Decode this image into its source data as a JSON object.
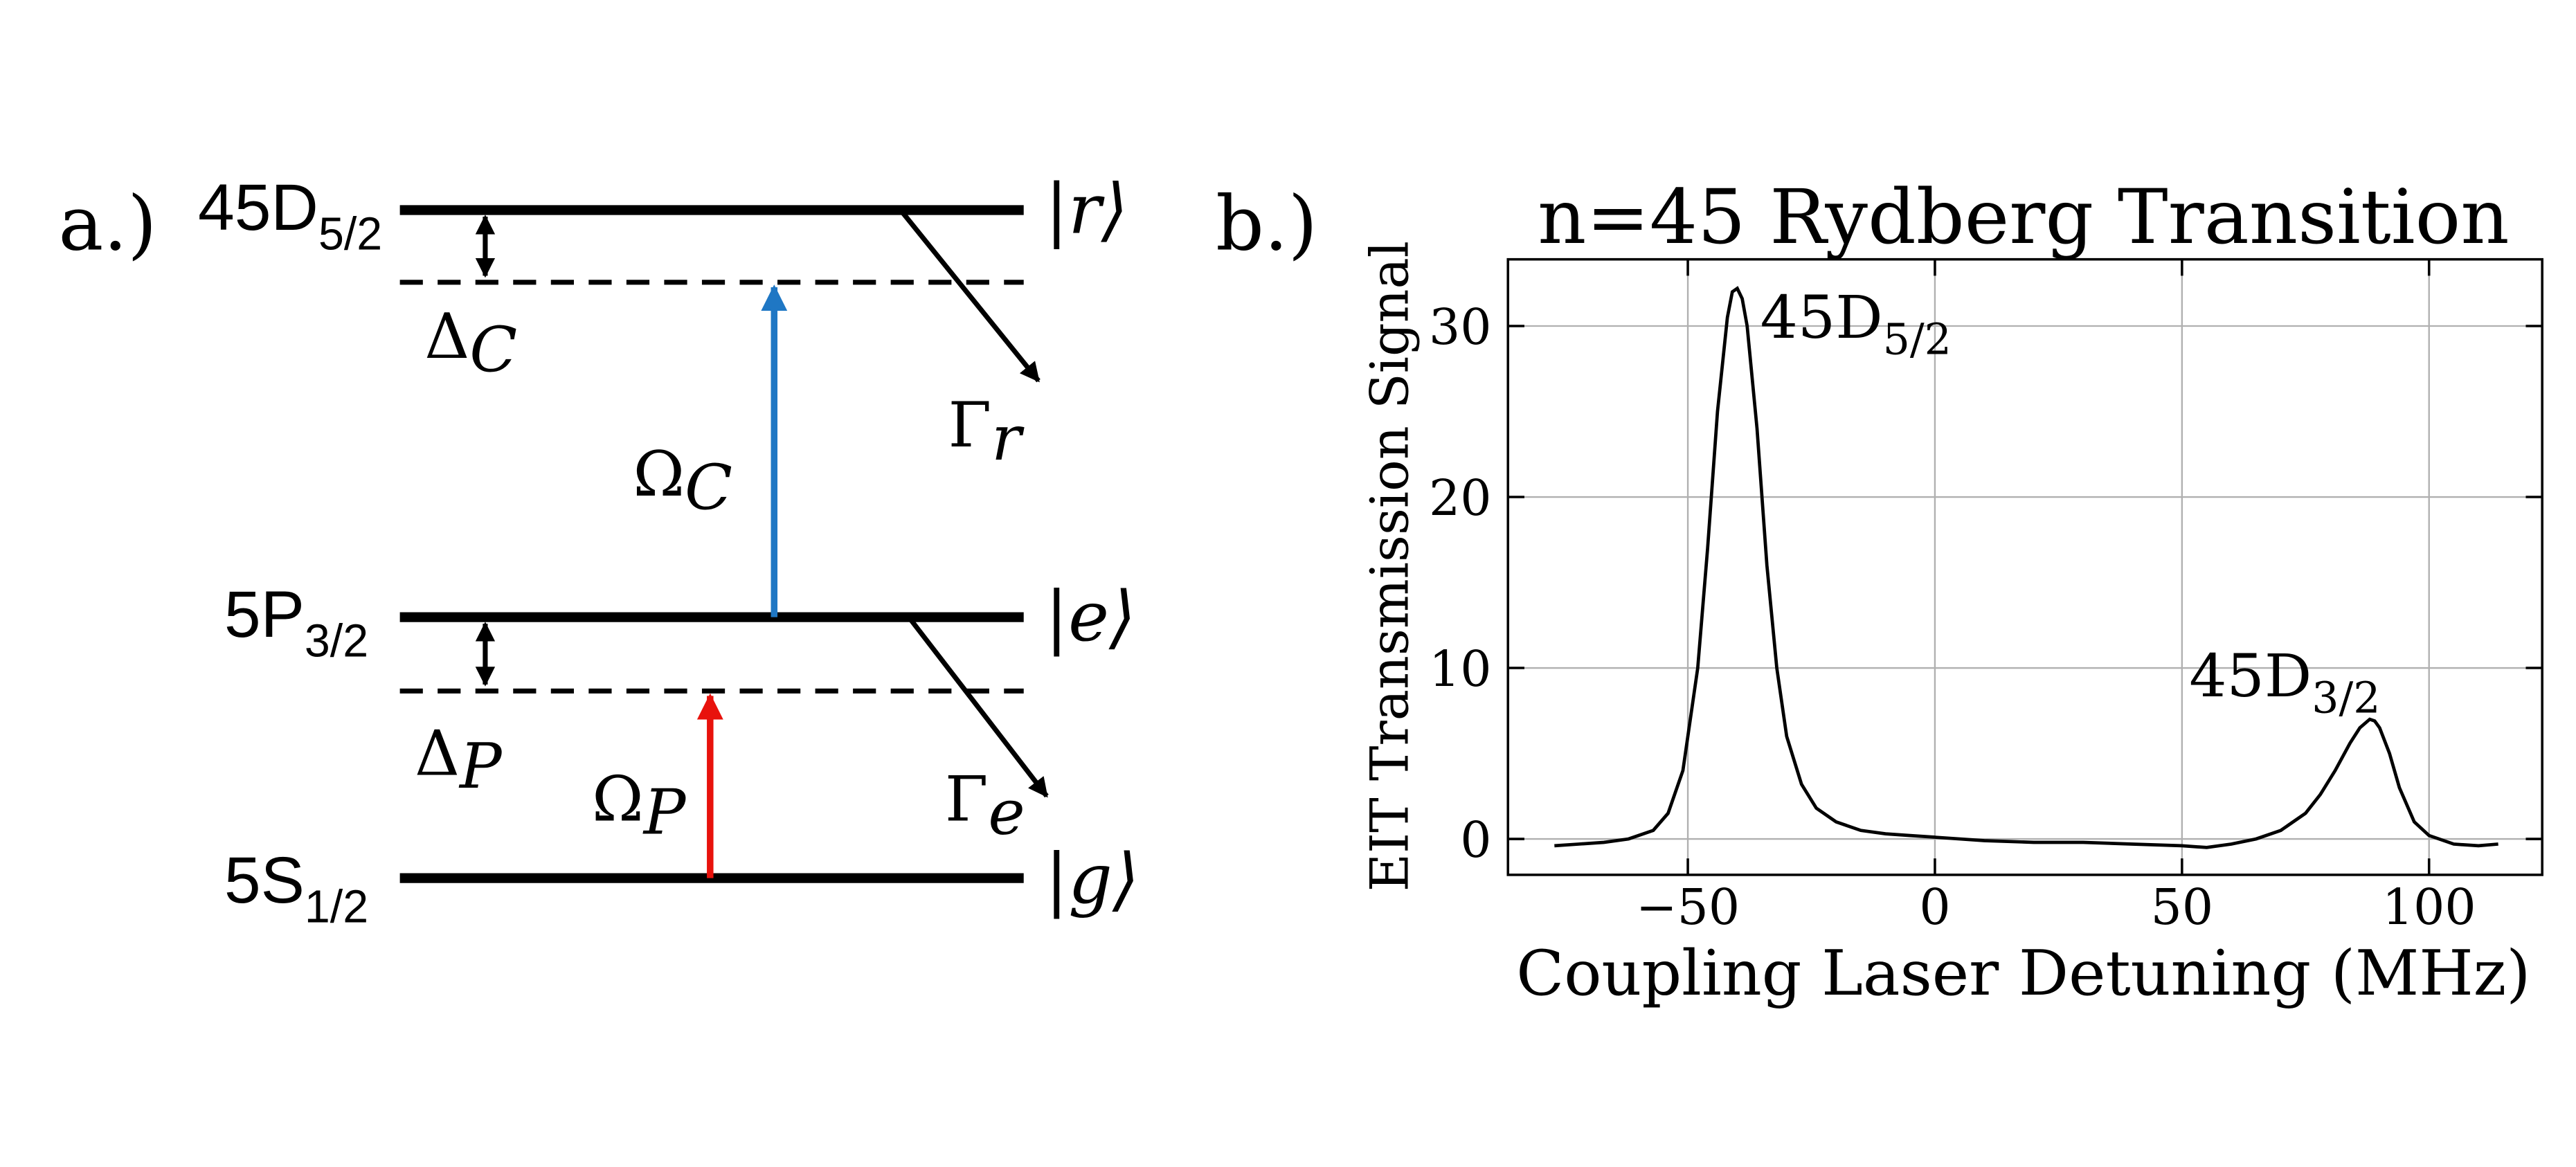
{
  "diagram": {
    "panel_label": "a.)",
    "levels": [
      {
        "name": "45D",
        "sub": "5/2",
        "ket": "|r⟩"
      },
      {
        "name": "5P",
        "sub": "3/2",
        "ket": "|e⟩"
      },
      {
        "name": "5S",
        "sub": "1/2",
        "ket": "|g⟩"
      }
    ],
    "symbols": {
      "delta_c": {
        "base": "Δ",
        "sub": "C"
      },
      "omega_c": {
        "base": "Ω",
        "sub": "C"
      },
      "gamma_r": {
        "base": "Γ",
        "sub": "r"
      },
      "delta_p": {
        "base": "Δ",
        "sub": "P"
      },
      "omega_p": {
        "base": "Ω",
        "sub": "P"
      },
      "gamma_e": {
        "base": "Γ",
        "sub": "e"
      }
    }
  },
  "panel_label_b": "b.)",
  "chart_data": {
    "type": "line",
    "title": "n=45 Rydberg Transition",
    "x_label": "Coupling Laser Detuning (MHz)",
    "y_label": "EIT Transmission Signal",
    "x": [
      -77,
      -72,
      -67,
      -62,
      -57,
      -54,
      -51,
      -48,
      -46,
      -44,
      -42,
      -41,
      -40,
      -39,
      -38,
      -36,
      -34,
      -32,
      -30,
      -27,
      -24,
      -20,
      -15,
      -10,
      -5,
      0,
      10,
      20,
      30,
      40,
      50,
      55,
      60,
      65,
      70,
      75,
      78,
      81,
      84,
      86,
      88,
      89,
      90,
      92,
      94,
      97,
      100,
      105,
      110,
      114
    ],
    "values": [
      -0.4,
      -0.3,
      -0.2,
      0,
      0.5,
      1.5,
      4,
      10,
      17,
      25,
      30.5,
      32,
      32.2,
      31.6,
      30,
      24,
      16,
      10,
      6,
      3.2,
      1.8,
      1.0,
      0.5,
      0.3,
      0.2,
      0.1,
      -0.1,
      -0.2,
      -0.2,
      -0.3,
      -0.4,
      -0.5,
      -0.3,
      0,
      0.5,
      1.5,
      2.6,
      4,
      5.6,
      6.5,
      7,
      6.9,
      6.5,
      5,
      3,
      1,
      0.2,
      -0.3,
      -0.4,
      -0.3
    ],
    "color": "#000000",
    "xlim": [
      -86.4,
      122.9
    ],
    "ylim": [
      -2.1,
      33.9
    ],
    "xticks": [
      {
        "value": -50,
        "label": "−50"
      },
      0,
      50,
      100
    ],
    "yticks": [
      0,
      10,
      20,
      30
    ],
    "grid": true,
    "annotations": [
      {
        "text": "45D",
        "sub": "5/2",
        "x": -40,
        "y": 32.2
      },
      {
        "text": "45D",
        "sub": "3/2",
        "x": 88,
        "y": 7
      }
    ]
  }
}
